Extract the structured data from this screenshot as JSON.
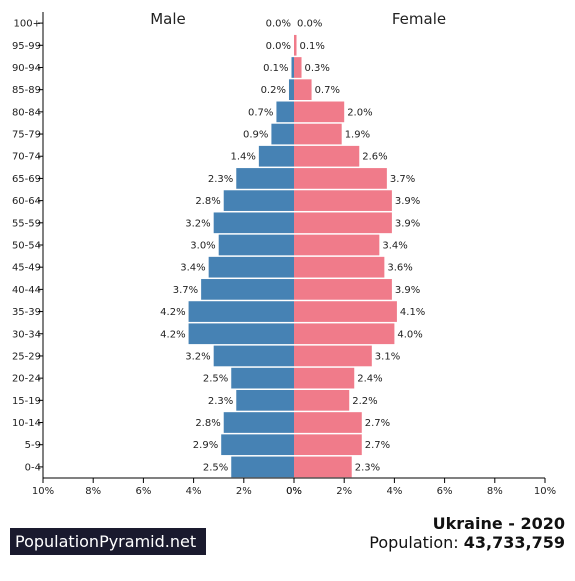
{
  "chart_data": {
    "type": "bar",
    "orientation": "horizontal-population-pyramid",
    "categories": [
      "100+",
      "95-99",
      "90-94",
      "85-89",
      "80-84",
      "75-79",
      "70-74",
      "65-69",
      "60-64",
      "55-59",
      "50-54",
      "45-49",
      "40-44",
      "35-39",
      "30-34",
      "25-29",
      "20-24",
      "15-19",
      "10-14",
      "5-9",
      "0-4"
    ],
    "series": [
      {
        "name": "Male",
        "values": [
          0.0,
          0.0,
          0.1,
          0.2,
          0.7,
          0.9,
          1.4,
          2.3,
          2.8,
          3.2,
          3.0,
          3.4,
          3.7,
          4.2,
          4.2,
          3.2,
          2.5,
          2.3,
          2.8,
          2.9,
          2.5
        ],
        "labels": [
          "0.0%",
          "0.0%",
          "0.1%",
          "0.2%",
          "0.7%",
          "0.9%",
          "1.4%",
          "2.3%",
          "2.8%",
          "3.2%",
          "3.0%",
          "3.4%",
          "3.7%",
          "4.2%",
          "4.2%",
          "3.2%",
          "2.5%",
          "2.3%",
          "2.8%",
          "2.9%",
          "2.5%"
        ],
        "color": "#4682b4"
      },
      {
        "name": "Female",
        "values": [
          0.0,
          0.1,
          0.3,
          0.7,
          2.0,
          1.9,
          2.6,
          3.7,
          3.9,
          3.9,
          3.4,
          3.6,
          3.9,
          4.1,
          4.0,
          3.1,
          2.4,
          2.2,
          2.7,
          2.7,
          2.3
        ],
        "labels": [
          "0.0%",
          "0.1%",
          "0.3%",
          "0.7%",
          "2.0%",
          "1.9%",
          "2.6%",
          "3.7%",
          "3.9%",
          "3.9%",
          "3.4%",
          "3.6%",
          "3.9%",
          "4.1%",
          "4.0%",
          "3.1%",
          "2.4%",
          "2.2%",
          "2.7%",
          "2.7%",
          "2.3%"
        ],
        "color": "#f07b8a"
      }
    ],
    "xlim": [
      0,
      10
    ],
    "male_tick_labels": [
      "10%",
      "8%",
      "6%",
      "4%",
      "2%",
      "0%"
    ],
    "female_tick_labels": [
      "0%",
      "2%",
      "4%",
      "6%",
      "8%",
      "10%"
    ],
    "grid": false
  },
  "footer": {
    "brand": "PopulationPyramid.net",
    "title": "Ukraine - 2020",
    "population_label": "Population:",
    "population_value": "43,733,759"
  }
}
